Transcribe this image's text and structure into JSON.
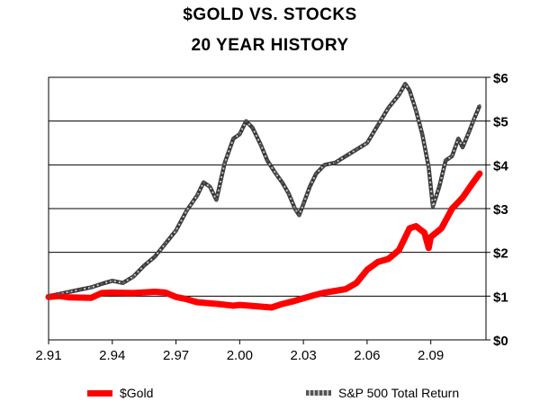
{
  "chart_data": {
    "type": "line",
    "title": "$GOLD VS. STOCKS",
    "subtitle": "20 YEAR HISTORY",
    "xlabel": "",
    "ylabel": "",
    "x_ticks": [
      "2.91",
      "2.94",
      "2.97",
      "2.00",
      "2.03",
      "2.06",
      "2.09"
    ],
    "x_range": [
      1991,
      2011.6
    ],
    "y_ticks": [
      "$0",
      "$1",
      "$2",
      "$3",
      "$4",
      "$5",
      "$6"
    ],
    "ylim": [
      0,
      6
    ],
    "y_axis_side": "right",
    "grid": true,
    "series": [
      {
        "name": "$Gold",
        "color": "#ff0000",
        "style": "solid-thick",
        "x": [
          1991.0,
          1991.5,
          1992.0,
          1993.0,
          1993.5,
          1994.0,
          1995.0,
          1996.0,
          1996.5,
          1997.0,
          1997.5,
          1998.0,
          1999.0,
          1999.7,
          2000.0,
          2001.0,
          2001.5,
          2002.0,
          2002.5,
          2003.0,
          2003.5,
          2004.0,
          2004.5,
          2005.0,
          2005.5,
          2006.0,
          2006.5,
          2007.0,
          2007.5,
          2008.0,
          2008.3,
          2008.7,
          2008.9,
          2009.0,
          2009.5,
          2010.0,
          2010.5,
          2011.0,
          2011.3
        ],
        "values": [
          0.98,
          1.0,
          0.97,
          0.96,
          1.07,
          1.08,
          1.07,
          1.1,
          1.08,
          0.98,
          0.93,
          0.86,
          0.82,
          0.78,
          0.8,
          0.76,
          0.74,
          0.82,
          0.88,
          0.95,
          1.02,
          1.08,
          1.12,
          1.16,
          1.3,
          1.6,
          1.78,
          1.85,
          2.05,
          2.55,
          2.6,
          2.45,
          2.1,
          2.35,
          2.55,
          3.0,
          3.25,
          3.6,
          3.8
        ]
      },
      {
        "name": "S&P 500 Total Return",
        "color": "#777777",
        "style": "dashed-gray",
        "x": [
          1991.0,
          1991.5,
          1992.0,
          1992.5,
          1993.0,
          1993.5,
          1994.0,
          1994.5,
          1995.0,
          1995.5,
          1996.0,
          1996.5,
          1997.0,
          1997.5,
          1998.0,
          1998.3,
          1998.6,
          1998.9,
          1999.3,
          1999.7,
          2000.0,
          2000.3,
          2000.6,
          2001.0,
          2001.3,
          2001.7,
          2002.0,
          2002.3,
          2002.6,
          2002.8,
          2003.0,
          2003.3,
          2003.6,
          2004.0,
          2004.5,
          2005.0,
          2005.5,
          2006.0,
          2006.5,
          2007.0,
          2007.5,
          2007.8,
          2008.0,
          2008.3,
          2008.6,
          2008.9,
          2009.1,
          2009.4,
          2009.7,
          2010.0,
          2010.3,
          2010.5,
          2010.8,
          2011.0,
          2011.3
        ],
        "values": [
          1.0,
          1.05,
          1.1,
          1.15,
          1.2,
          1.28,
          1.35,
          1.3,
          1.45,
          1.7,
          1.9,
          2.2,
          2.5,
          2.95,
          3.3,
          3.6,
          3.5,
          3.2,
          4.05,
          4.6,
          4.7,
          5.0,
          4.85,
          4.45,
          4.1,
          3.8,
          3.6,
          3.35,
          3.0,
          2.85,
          3.1,
          3.5,
          3.8,
          4.0,
          4.05,
          4.2,
          4.35,
          4.5,
          4.9,
          5.3,
          5.6,
          5.85,
          5.7,
          5.25,
          4.7,
          3.95,
          3.05,
          3.5,
          4.1,
          4.2,
          4.6,
          4.4,
          4.75,
          5.0,
          5.35
        ]
      }
    ],
    "legend_position": "bottom"
  }
}
